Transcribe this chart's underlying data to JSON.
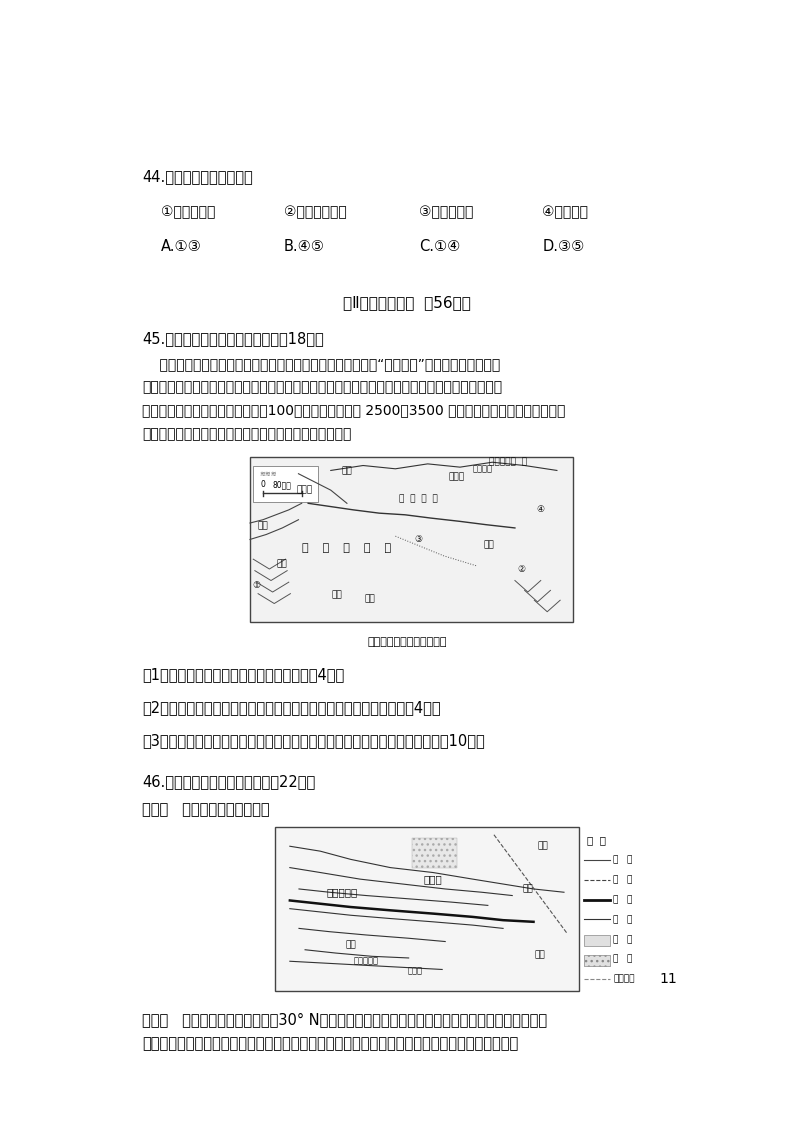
{
  "page_bg": "#ffffff",
  "page_number": "11",
  "q44_text": "44.以西风为动力的洋流是",
  "q44_options": [
    "①南赤道暖流",
    "②北太平洋暖流",
    "③本格拉寒流",
    "④西风漂流"
  ],
  "q44_answers": [
    "A.①③",
    "B.④⑤",
    "C.①④",
    "D.③⑤"
  ],
  "section2_title": "第Ⅱ卷（非选择题  入56分）",
  "q45_title": "45.读图和资料，回答下列问题。（18分）",
  "q45_lines": [
    "    历史上的塔里木河曾多次改道，下游几度断流，造成被誉为“沙漠神木”的胡杨林大片柯死，",
    "现在塔里木河两岸恢复的绿色生命得益于塔里木河输水工程，即便这样，水依然是这里最宝贵的资",
    "源。塔克拉玛干地区年降雨量不足100毫米，蒓发量却在 2500～3500 毫米之间，是世界上年降雨量最",
    "少的干旱地区之一，一年中三分之一的时间处在风沙中。"
  ],
  "q45_map1_caption": "塔里木盆地的沙漠与绿洲图",
  "q45_sub1": "（1）分析塔里木河流域气候干旱的原因。（4分）",
  "q45_sub2": "（2）简述该地区大规模种植棉花和西红柿且品质优良的自然原因。（4分）",
  "q45_sub3": "（3）试分析干旱的气候对本地区地理环境整体性（自然和人文环境）的影响（10分）",
  "q46_title": "46.阅读材料，完成下列问题。（22分）",
  "q46_mat1": "材料一   中国西南地区示意图。",
  "q46_mat2_line1": "材料二   近年来，我国西藏拉萨（30° N）凭借先天地理优势，提出以高原有机农牧业为基础，以先",
  "q46_mat2_line2": "进技术改进和提升传统产业为重点，开发高原有机健康食品、高原有机生命产品、高原保健药品、",
  "text_color": "#000000",
  "page_width": 7.94,
  "page_height": 11.23
}
